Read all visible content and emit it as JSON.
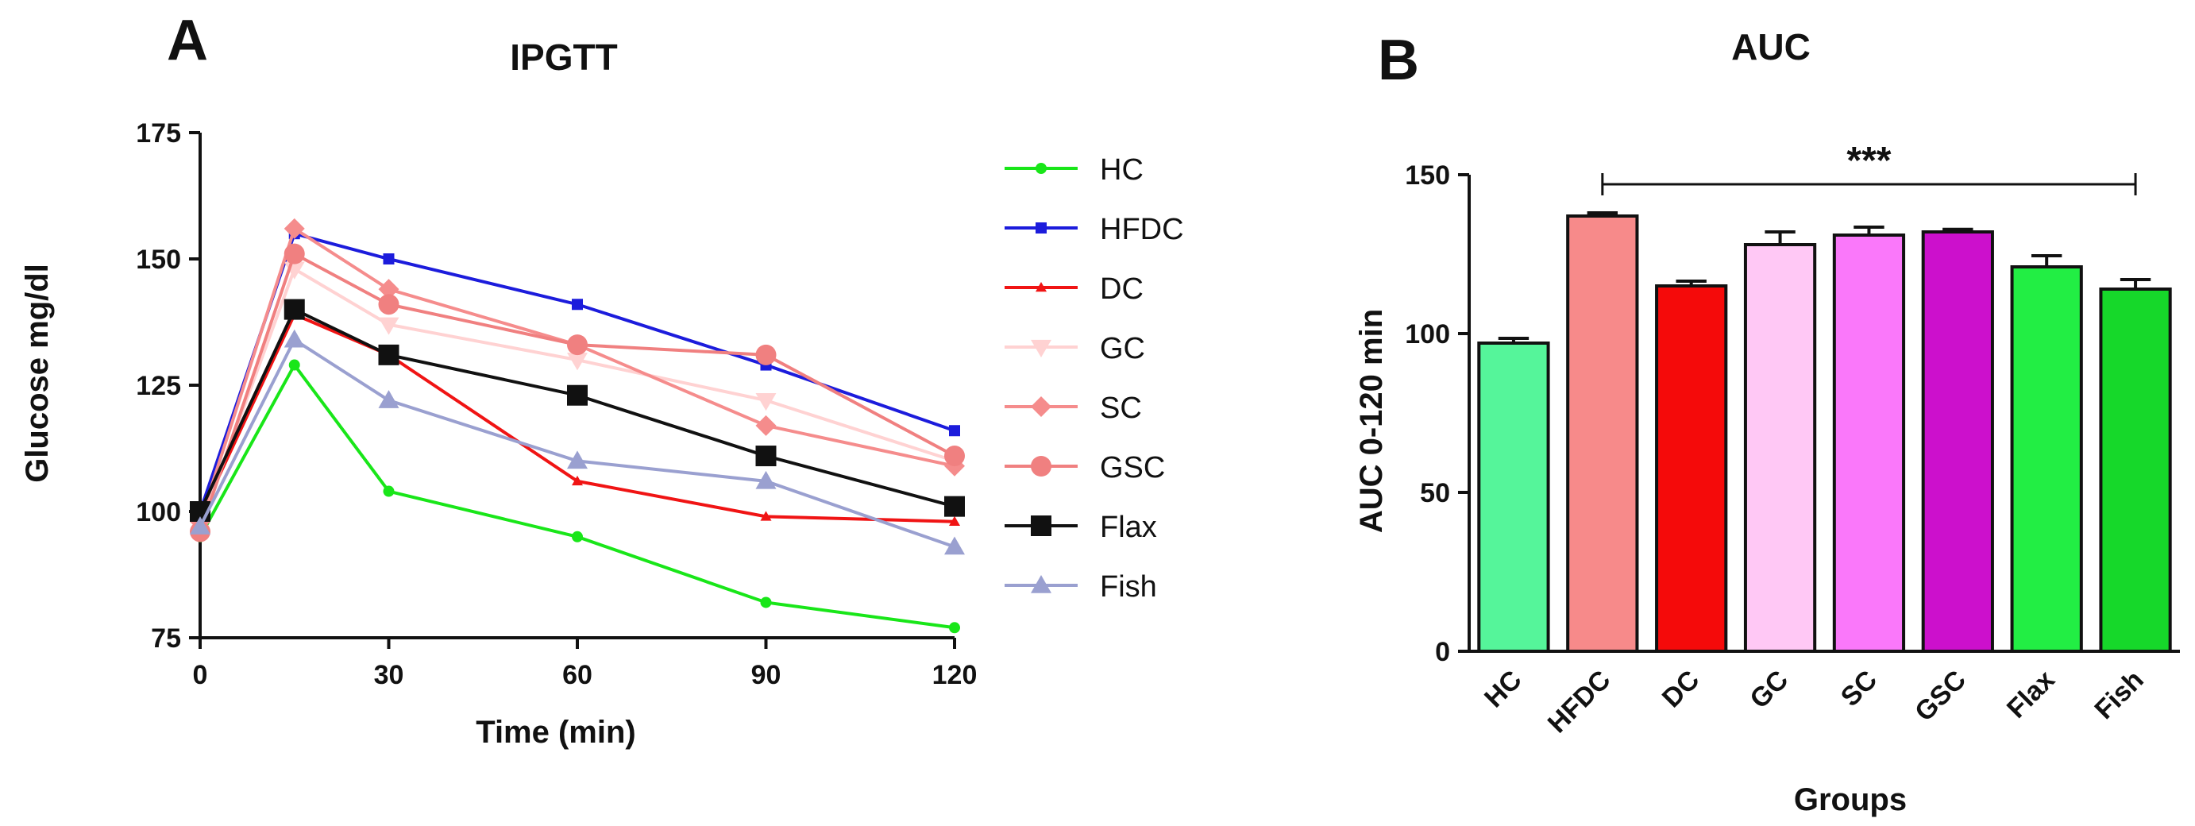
{
  "chart_data": [
    {
      "panel": "A",
      "type": "line",
      "title": "IPGTT",
      "xlabel": "Time (min)",
      "ylabel": "Glucose mg/dl",
      "xlim": [
        0,
        120
      ],
      "ylim": [
        75,
        175
      ],
      "xticks": [
        0,
        30,
        60,
        90,
        120
      ],
      "yticks": [
        75,
        100,
        125,
        150,
        175
      ],
      "legend_position": "right",
      "x": [
        0,
        15,
        30,
        60,
        90,
        120
      ],
      "series": [
        {
          "name": "HC",
          "color": "#19e619",
          "marker": "circle-small",
          "values": [
            95,
            129,
            104,
            95,
            82,
            77
          ]
        },
        {
          "name": "HFDC",
          "color": "#1c1cdc",
          "marker": "square-small",
          "values": [
            100,
            155,
            150,
            141,
            129,
            116
          ]
        },
        {
          "name": "DC",
          "color": "#f01414",
          "marker": "triangle-small",
          "values": [
            99,
            139,
            131,
            106,
            99,
            98
          ]
        },
        {
          "name": "GC",
          "color": "#ffd2d2",
          "marker": "triangle-down",
          "values": [
            97,
            148,
            137,
            130,
            122,
            110
          ]
        },
        {
          "name": "SC",
          "color": "#f58c8c",
          "marker": "diamond",
          "values": [
            98,
            156,
            144,
            133,
            117,
            109
          ]
        },
        {
          "name": "GSC",
          "color": "#f08080",
          "marker": "circle",
          "values": [
            96,
            151,
            141,
            133,
            131,
            111
          ]
        },
        {
          "name": "Flax",
          "color": "#111111",
          "marker": "square",
          "values": [
            100,
            140,
            131,
            123,
            111,
            101
          ]
        },
        {
          "name": "Fish",
          "color": "#9aa0d0",
          "marker": "triangle",
          "values": [
            97,
            134,
            122,
            110,
            106,
            93
          ]
        }
      ]
    },
    {
      "panel": "B",
      "type": "bar",
      "title": "AUC",
      "xlabel": "Groups",
      "ylabel": "AUC 0-120 min",
      "ylim": [
        0,
        150
      ],
      "yticks": [
        0,
        50,
        100,
        150
      ],
      "categories": [
        "HC",
        "HFDC",
        "DC",
        "GC",
        "SC",
        "GSC",
        "Flax",
        "Fish"
      ],
      "values": [
        97,
        137,
        115,
        128,
        131,
        132,
        121,
        114
      ],
      "errors": [
        1.5,
        1,
        1.5,
        4,
        2.5,
        0.8,
        3.5,
        3
      ],
      "colors": [
        "#55f59a",
        "#f78a8a",
        "#f50a0a",
        "#ffc8f5",
        "#fa78fa",
        "#cc10cc",
        "#22ee44",
        "#16d82a"
      ],
      "annotation": {
        "text": "***",
        "from": "HFDC",
        "to": "Fish",
        "y": 147
      }
    }
  ]
}
